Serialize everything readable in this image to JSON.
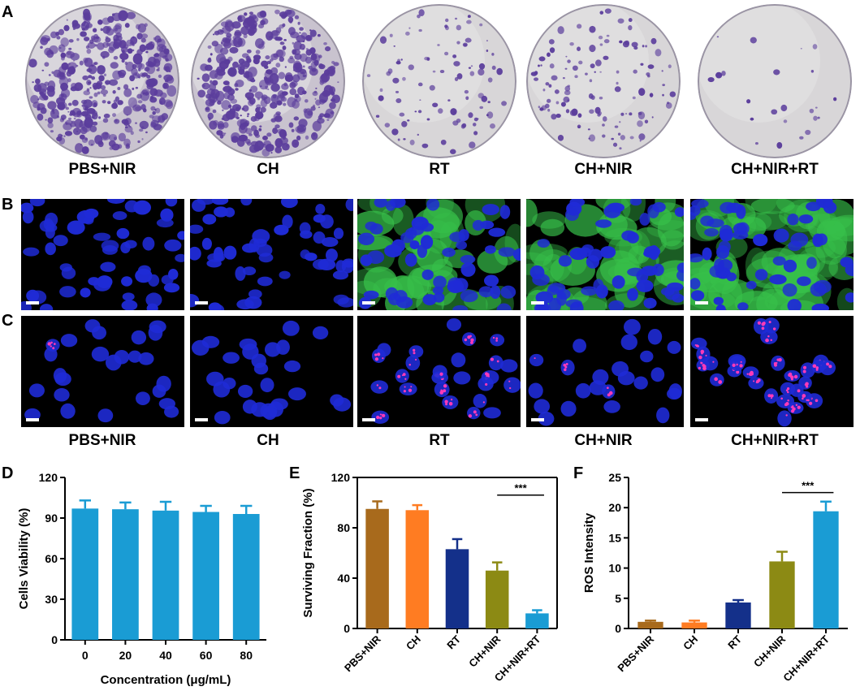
{
  "panels": {
    "a": "A",
    "b": "B",
    "c": "C",
    "d": "D",
    "e": "E",
    "f": "F"
  },
  "groups": [
    "PBS+NIR",
    "CH",
    "RT",
    "CH+NIR",
    "CH+NIR+RT"
  ],
  "colony_density": [
    1.0,
    1.0,
    0.22,
    0.28,
    0.04
  ],
  "green_level": [
    0.0,
    0.0,
    0.55,
    0.7,
    1.0
  ],
  "pink_foci_level": [
    0.05,
    0.05,
    0.6,
    0.15,
    1.0
  ],
  "colors": {
    "dish_purple": "#5b3d9c",
    "nucleus_blue": "#1f2bd6",
    "ros_green": "#37c04a",
    "foci_pink": "#ff3ab8",
    "bar_cyan": "#1a9cd4"
  },
  "chart_data": [
    {
      "id": "D",
      "type": "bar",
      "categories": [
        "0",
        "20",
        "40",
        "60",
        "80"
      ],
      "values": [
        97,
        96.5,
        95.5,
        94.5,
        93
      ],
      "errors": [
        6,
        5,
        6.5,
        4.5,
        6
      ],
      "xlabel": "Concentration (μg/mL)",
      "ylabel": "Cells Viability (%)",
      "ylim": [
        0,
        120
      ],
      "yticks": [
        0,
        30,
        60,
        90,
        120
      ],
      "bar_colors": [
        "#1a9cd4",
        "#1a9cd4",
        "#1a9cd4",
        "#1a9cd4",
        "#1a9cd4"
      ],
      "significance": null
    },
    {
      "id": "E",
      "type": "bar",
      "categories": [
        "PBS+NIR",
        "CH",
        "RT",
        "CH+NIR",
        "CH+NIR+RT"
      ],
      "values": [
        95,
        94,
        63,
        46,
        12
      ],
      "errors": [
        6,
        4,
        8,
        6.5,
        2.5
      ],
      "xlabel": "",
      "ylabel": "Surviving Fraction (%)",
      "ylim": [
        0,
        120
      ],
      "yticks": [
        0,
        40,
        80,
        120
      ],
      "bar_colors": [
        "#a86a1c",
        "#ff7c22",
        "#14308a",
        "#8c8a14",
        "#1a9cd4"
      ],
      "significance": {
        "from": 3,
        "to": 4,
        "label": "***",
        "level": 106
      }
    },
    {
      "id": "F",
      "type": "bar",
      "categories": [
        "PBS+NIR",
        "CH",
        "RT",
        "CH+NIR",
        "CH+NIR+RT"
      ],
      "values": [
        1.1,
        1.0,
        4.3,
        11.1,
        19.4
      ],
      "errors": [
        0.2,
        0.3,
        0.4,
        1.6,
        1.6
      ],
      "xlabel": "",
      "ylabel": "ROS Intensity",
      "ylim": [
        0,
        25
      ],
      "yticks": [
        0,
        5,
        10,
        15,
        20,
        25
      ],
      "bar_colors": [
        "#a86a1c",
        "#ff7c22",
        "#14308a",
        "#8c8a14",
        "#1a9cd4"
      ],
      "significance": {
        "from": 3,
        "to": 4,
        "label": "***",
        "level": 22.5
      }
    }
  ]
}
